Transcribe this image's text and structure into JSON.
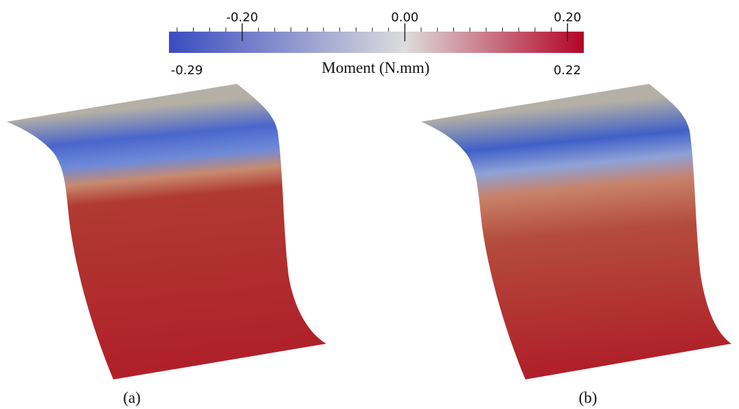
{
  "colorbar": {
    "title": "Moment (N.mm)",
    "min": {
      "value": -0.29,
      "label": "-0.29"
    },
    "max": {
      "value": 0.22,
      "label": "0.22"
    },
    "ticks": [
      {
        "value": -0.2,
        "label": "-0.20"
      },
      {
        "value": 0,
        "label": "0.00"
      },
      {
        "value": 0.2,
        "label": "0.20"
      }
    ]
  },
  "panels": [
    {
      "label": "(a)"
    },
    {
      "label": "(b)"
    }
  ]
}
